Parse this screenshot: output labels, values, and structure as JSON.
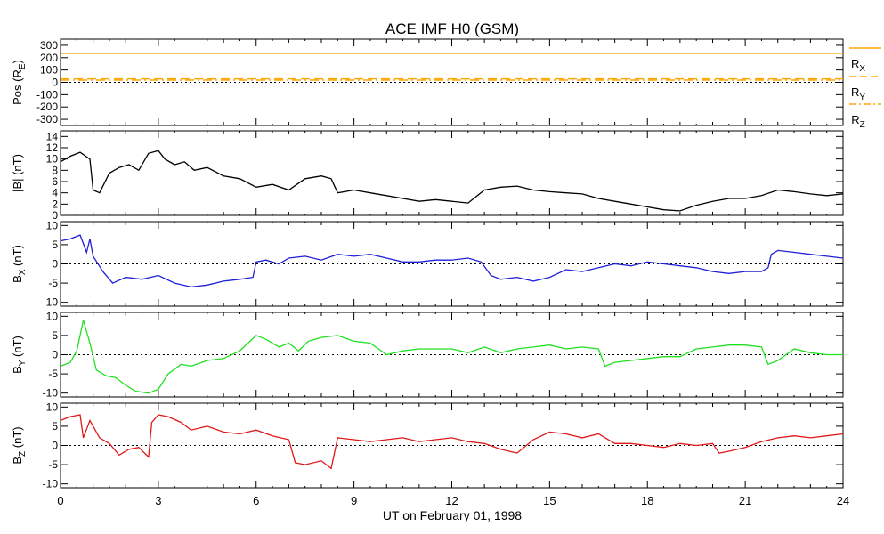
{
  "title": "ACE IMF H0 (GSM)",
  "xlabel": "UT on February 01, 1998",
  "colors": {
    "pos": "#ffa500",
    "b_total": "#000000",
    "bx": "#2020d8",
    "by": "#20e020",
    "bz": "#e01818",
    "zero_line": "#000000",
    "frame": "#000000"
  },
  "chart_data": [
    {
      "type": "line",
      "name": "position",
      "ylabel": "Pos (R",
      "ylabel_sub": "E",
      "ylabel_suffix": ")",
      "ylim": [
        -350,
        350
      ],
      "yticks": [
        300,
        200,
        100,
        0,
        -100,
        -200,
        -300
      ],
      "zero_line": true,
      "series": [
        {
          "name": "R",
          "name_sub": "X",
          "style": "solid",
          "x": [
            0,
            24
          ],
          "values": [
            235,
            235
          ]
        },
        {
          "name": "R",
          "name_sub": "Y",
          "style": "dashed",
          "x": [
            0,
            24
          ],
          "values": [
            28,
            28
          ]
        },
        {
          "name": "R",
          "name_sub": "Z",
          "style": "dashdot",
          "x": [
            0,
            24
          ],
          "values": [
            18,
            18
          ]
        }
      ]
    },
    {
      "type": "line",
      "name": "b_total",
      "ylabel": "|B| (nT)",
      "ylim": [
        0,
        15
      ],
      "yticks": [
        14,
        12,
        10,
        8,
        6,
        4,
        2,
        0
      ],
      "zero_line": false,
      "series": [
        {
          "name": "|B|",
          "x": [
            0,
            0.3,
            0.6,
            0.9,
            1.0,
            1.2,
            1.5,
            1.8,
            2.1,
            2.4,
            2.7,
            3.0,
            3.2,
            3.5,
            3.8,
            4.1,
            4.5,
            5.0,
            5.5,
            6.0,
            6.5,
            7.0,
            7.5,
            8.0,
            8.3,
            8.5,
            9.0,
            9.5,
            10.0,
            10.5,
            11.0,
            11.5,
            12.0,
            12.5,
            13.0,
            13.5,
            14.0,
            14.5,
            15.0,
            15.5,
            16.0,
            16.5,
            17.0,
            17.5,
            18.0,
            18.5,
            19.0,
            19.5,
            20.0,
            20.5,
            21.0,
            21.5,
            22.0,
            22.5,
            23.0,
            23.5,
            24.0
          ],
          "values": [
            9.5,
            10.5,
            11.2,
            10.0,
            4.5,
            4.0,
            7.5,
            8.5,
            9.0,
            8.0,
            11.0,
            11.5,
            10.0,
            9.0,
            9.5,
            8.0,
            8.5,
            7.0,
            6.5,
            5.0,
            5.5,
            4.5,
            6.5,
            7.0,
            6.5,
            4.0,
            4.5,
            4.0,
            3.5,
            3.0,
            2.5,
            2.8,
            2.5,
            2.2,
            4.5,
            5.0,
            5.2,
            4.5,
            4.2,
            4.0,
            3.8,
            3.0,
            2.5,
            2.0,
            1.5,
            1.0,
            0.8,
            1.8,
            2.5,
            3.0,
            3.0,
            3.5,
            4.5,
            4.2,
            3.8,
            3.5,
            3.8
          ]
        }
      ]
    },
    {
      "type": "line",
      "name": "bx",
      "ylabel": "B",
      "ylabel_sub": "X",
      "ylabel_suffix": " (nT)",
      "ylim": [
        -11,
        11
      ],
      "yticks": [
        10,
        5,
        0,
        -5,
        -10
      ],
      "zero_line": true,
      "series": [
        {
          "name": "Bx",
          "x": [
            0,
            0.3,
            0.6,
            0.8,
            0.9,
            1.0,
            1.3,
            1.6,
            2.0,
            2.5,
            3.0,
            3.5,
            4.0,
            4.5,
            5.0,
            5.5,
            5.9,
            6.0,
            6.3,
            6.7,
            7.0,
            7.5,
            8.0,
            8.5,
            9.0,
            9.5,
            10.0,
            10.5,
            11.0,
            11.5,
            12.0,
            12.5,
            12.9,
            13.2,
            13.5,
            14.0,
            14.5,
            15.0,
            15.5,
            16.0,
            16.5,
            17.0,
            17.5,
            18.0,
            18.5,
            19.0,
            19.5,
            20.0,
            20.5,
            21.0,
            21.5,
            21.7,
            21.8,
            22.0,
            22.5,
            23.0,
            23.5,
            24.0
          ],
          "values": [
            6.0,
            6.5,
            7.5,
            3.0,
            6.5,
            2.0,
            -2.0,
            -5.0,
            -3.5,
            -4.0,
            -3.0,
            -5.0,
            -6.0,
            -5.5,
            -4.5,
            -4.0,
            -3.5,
            0.5,
            1.0,
            0.0,
            1.5,
            2.0,
            1.0,
            2.5,
            2.0,
            2.5,
            1.5,
            0.5,
            0.5,
            1.0,
            1.0,
            1.5,
            0.5,
            -3.0,
            -4.0,
            -3.5,
            -4.5,
            -3.5,
            -1.5,
            -2.0,
            -1.0,
            0.0,
            -0.5,
            0.5,
            0.0,
            -0.5,
            -1.0,
            -2.0,
            -2.5,
            -2.0,
            -2.0,
            -1.0,
            2.5,
            3.5,
            3.0,
            2.5,
            2.0,
            1.5
          ]
        }
      ]
    },
    {
      "type": "line",
      "name": "by",
      "ylabel": "B",
      "ylabel_sub": "Y",
      "ylabel_suffix": " (nT)",
      "ylim": [
        -11,
        11
      ],
      "yticks": [
        10,
        5,
        0,
        -5,
        -10
      ],
      "zero_line": true,
      "series": [
        {
          "name": "By",
          "x": [
            0,
            0.3,
            0.5,
            0.7,
            0.9,
            1.1,
            1.4,
            1.7,
            2.0,
            2.3,
            2.7,
            3.0,
            3.3,
            3.7,
            4.0,
            4.5,
            5.0,
            5.5,
            6.0,
            6.3,
            6.7,
            7.0,
            7.3,
            7.6,
            8.0,
            8.5,
            9.0,
            9.5,
            10.0,
            10.5,
            11.0,
            11.5,
            12.0,
            12.5,
            13.0,
            13.5,
            14.0,
            14.5,
            15.0,
            15.5,
            16.0,
            16.5,
            16.7,
            17.0,
            17.5,
            18.0,
            18.5,
            19.0,
            19.5,
            20.0,
            20.5,
            21.0,
            21.5,
            21.7,
            22.0,
            22.5,
            23.0,
            23.5,
            24.0
          ],
          "values": [
            -3.0,
            -2.0,
            1.0,
            9.0,
            3.0,
            -4.0,
            -5.5,
            -6.0,
            -8.0,
            -9.5,
            -10.0,
            -9.0,
            -5.0,
            -2.5,
            -3.0,
            -1.5,
            -1.0,
            1.0,
            5.0,
            4.0,
            2.0,
            3.0,
            1.0,
            3.5,
            4.5,
            5.0,
            3.5,
            3.0,
            0.0,
            1.0,
            1.5,
            1.5,
            1.5,
            0.5,
            2.0,
            0.5,
            1.5,
            2.0,
            2.5,
            1.5,
            2.0,
            1.5,
            -3.0,
            -2.0,
            -1.5,
            -1.0,
            -0.5,
            -0.5,
            1.5,
            2.0,
            2.5,
            2.5,
            2.0,
            -2.5,
            -1.5,
            1.5,
            0.5,
            0.0,
            0.0
          ]
        }
      ]
    },
    {
      "type": "line",
      "name": "bz",
      "ylabel": "B",
      "ylabel_sub": "Z",
      "ylabel_suffix": " (nT)",
      "ylim": [
        -11,
        11
      ],
      "yticks": [
        10,
        5,
        0,
        -5,
        -10
      ],
      "zero_line": true,
      "series": [
        {
          "name": "Bz",
          "x": [
            0,
            0.3,
            0.6,
            0.7,
            0.9,
            1.2,
            1.5,
            1.8,
            2.1,
            2.4,
            2.7,
            2.8,
            3.0,
            3.3,
            3.7,
            4.0,
            4.5,
            5.0,
            5.5,
            6.0,
            6.5,
            7.0,
            7.2,
            7.5,
            8.0,
            8.3,
            8.5,
            9.0,
            9.5,
            10.0,
            10.5,
            11.0,
            11.5,
            12.0,
            12.5,
            13.0,
            13.5,
            14.0,
            14.5,
            15.0,
            15.5,
            16.0,
            16.5,
            17.0,
            17.5,
            18.0,
            18.5,
            19.0,
            19.5,
            20.0,
            20.2,
            20.5,
            21.0,
            21.5,
            22.0,
            22.5,
            23.0,
            23.5,
            24.0
          ],
          "values": [
            6.5,
            7.5,
            8.0,
            2.0,
            6.5,
            2.0,
            0.5,
            -2.5,
            -1.0,
            -0.5,
            -3.0,
            6.0,
            8.0,
            7.5,
            6.0,
            4.0,
            5.0,
            3.5,
            3.0,
            4.0,
            2.5,
            1.5,
            -4.5,
            -5.0,
            -4.0,
            -6.0,
            2.0,
            1.5,
            1.0,
            1.5,
            2.0,
            1.0,
            1.5,
            2.0,
            1.0,
            0.5,
            -1.0,
            -2.0,
            1.5,
            3.5,
            3.0,
            2.0,
            3.0,
            0.5,
            0.5,
            0.0,
            -0.5,
            0.5,
            0.0,
            0.5,
            -2.0,
            -1.5,
            -0.5,
            1.0,
            2.0,
            2.5,
            2.0,
            2.5,
            3.0
          ]
        }
      ]
    }
  ],
  "xaxis": {
    "xlim": [
      0,
      24
    ],
    "major_ticks": [
      0,
      3,
      6,
      9,
      12,
      15,
      18,
      21,
      24
    ],
    "tick_labels": [
      "0",
      "3",
      "6",
      "9",
      "12",
      "15",
      "18",
      "21",
      "24"
    ]
  }
}
